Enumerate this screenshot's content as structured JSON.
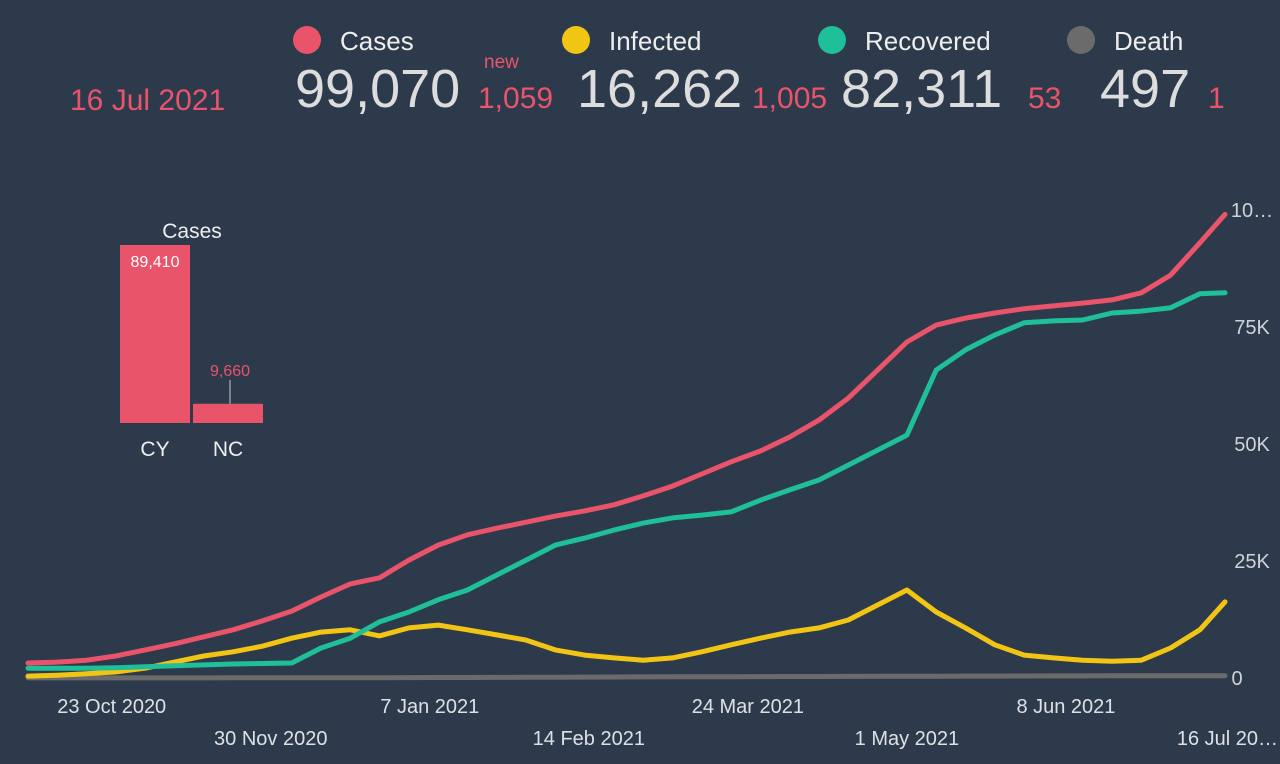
{
  "summary": {
    "date": "16 Jul 2021",
    "new_label": "new",
    "totals": [
      "99,070",
      "16,262",
      "82,311",
      "497"
    ],
    "new": [
      "1,059",
      "1,005",
      "53",
      "1"
    ]
  },
  "chart_data": [
    {
      "type": "line",
      "x": [
        "2020-10-03",
        "2020-10-10",
        "2020-10-17",
        "2020-10-24",
        "2020-10-31",
        "2020-11-07",
        "2020-11-14",
        "2020-11-21",
        "2020-11-28",
        "2020-12-05",
        "2020-12-12",
        "2020-12-19",
        "2020-12-26",
        "2021-01-02",
        "2021-01-09",
        "2021-01-16",
        "2021-01-23",
        "2021-01-30",
        "2021-02-06",
        "2021-02-13",
        "2021-02-20",
        "2021-02-27",
        "2021-03-06",
        "2021-03-13",
        "2021-03-20",
        "2021-03-27",
        "2021-04-03",
        "2021-04-10",
        "2021-04-17",
        "2021-04-24",
        "2021-05-01",
        "2021-05-08",
        "2021-05-15",
        "2021-05-22",
        "2021-05-29",
        "2021-06-05",
        "2021-06-12",
        "2021-06-19",
        "2021-06-26",
        "2021-07-03",
        "2021-07-10",
        "2021-07-16"
      ],
      "xlim": [
        "2020-10-03",
        "2021-07-16"
      ],
      "xticks": [
        {
          "value": "2020-10-23",
          "label": "23 Oct 2020"
        },
        {
          "value": "2020-11-30",
          "label": "30 Nov 2020"
        },
        {
          "value": "2021-01-07",
          "label": "7 Jan 2021"
        },
        {
          "value": "2021-02-14",
          "label": "14 Feb 2021"
        },
        {
          "value": "2021-03-24",
          "label": "24 Mar 2021"
        },
        {
          "value": "2021-05-01",
          "label": "1 May 2021"
        },
        {
          "value": "2021-06-08",
          "label": "8 Jun 2021"
        },
        {
          "value": "2021-07-16",
          "label": "16 Jul 20…"
        }
      ],
      "ylim": [
        0,
        100000
      ],
      "yticks": [
        0,
        {
          "value": 25000,
          "label": "25K"
        },
        {
          "value": 50000,
          "label": "50K"
        },
        {
          "value": 75000,
          "label": "75K"
        },
        {
          "value": 100000,
          "label": "10…"
        }
      ],
      "series": [
        {
          "name": "Cases",
          "color": "#e9546b",
          "values": [
            3200,
            3400,
            3800,
            4700,
            6000,
            7300,
            8800,
            10300,
            12200,
            14300,
            17300,
            20100,
            21400,
            25200,
            28400,
            30600,
            32000,
            33300,
            34600,
            35700,
            37000,
            38900,
            41000,
            43600,
            46200,
            48500,
            51500,
            55100,
            59800,
            65800,
            71800,
            75400,
            76900,
            78000,
            78900,
            79500,
            80100,
            80800,
            82300,
            86100,
            93000,
            99070
          ]
        },
        {
          "name": "Infected",
          "color": "#f2c515",
          "values": [
            400,
            600,
            900,
            1300,
            2100,
            3400,
            4700,
            5600,
            6800,
            8500,
            9800,
            10300,
            9000,
            10700,
            11300,
            10300,
            9200,
            8100,
            6000,
            4900,
            4300,
            3800,
            4300,
            5600,
            7100,
            8500,
            9800,
            10700,
            12400,
            15600,
            18800,
            14100,
            10700,
            7100,
            4900,
            4300,
            3800,
            3600,
            3800,
            6400,
            10300,
            16262
          ]
        },
        {
          "name": "Recovered",
          "color": "#1fbf99",
          "values": [
            2100,
            2100,
            2100,
            2200,
            2400,
            2600,
            2800,
            3000,
            3100,
            3200,
            6400,
            8500,
            12000,
            14100,
            16700,
            18800,
            22000,
            25200,
            28400,
            29900,
            31600,
            33100,
            34200,
            34800,
            35500,
            38000,
            40200,
            42300,
            45500,
            48700,
            51900,
            65800,
            70100,
            73300,
            75900,
            76300,
            76500,
            78000,
            78400,
            79100,
            82100,
            82311
          ]
        },
        {
          "name": "Death",
          "color": "#6b6b6b",
          "values": [
            22,
            22,
            23,
            24,
            25,
            27,
            30,
            33,
            38,
            44,
            52,
            60,
            70,
            85,
            100,
            115,
            130,
            150,
            170,
            190,
            210,
            230,
            250,
            268,
            285,
            300,
            315,
            330,
            345,
            360,
            372,
            385,
            400,
            415,
            430,
            442,
            452,
            460,
            468,
            475,
            485,
            497
          ]
        }
      ]
    },
    {
      "type": "bar",
      "title": "Cases",
      "categories": [
        "CY",
        "NC"
      ],
      "values": [
        89410,
        9660
      ],
      "value_labels": [
        "89,410",
        "9,660"
      ],
      "color": "#e9546b"
    }
  ]
}
